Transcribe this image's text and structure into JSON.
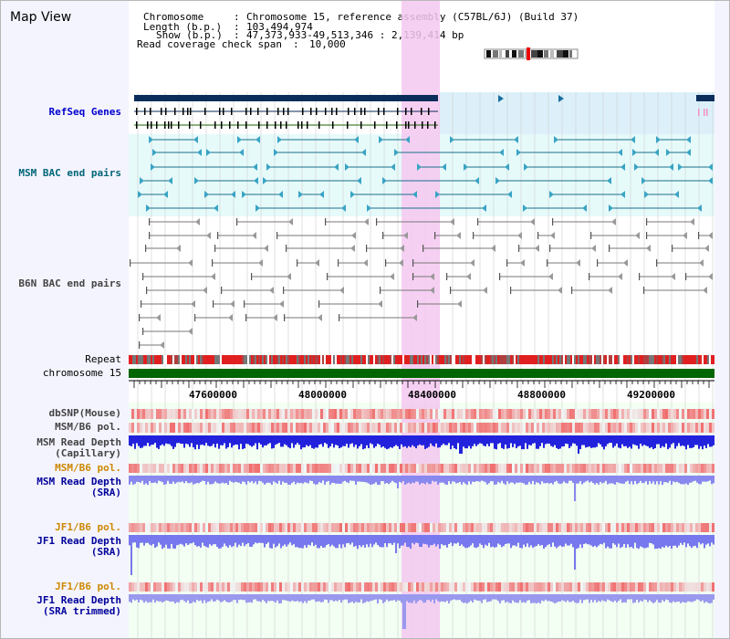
{
  "header": {
    "title": "Map View",
    "chromosome_key": "Chromosome",
    "chromosome_value": "Chromosome 15, reference assembly (C57BL/6J) (Build 37)",
    "length_key": "Length (b.p.)",
    "length_value": "103,494,974",
    "show_key": "Show (b.p.)",
    "show_value": "47,373,933-49,513,346 : 2,139,414 bp",
    "span_key": "Read coverage check span",
    "span_value": "10,000"
  },
  "tracks": {
    "refseq": "RefSeq Genes",
    "msm_bac": "MSM BAC end pairs",
    "b6n_bac": "B6N BAC end pairs",
    "repeat": "Repeat",
    "chromosome": "chromosome 15",
    "dbsnp": "dbSNP(Mouse)",
    "msm_b6_pol_1": "MSM/B6 pol.",
    "msm_depth_cap_1": "MSM Read Depth",
    "msm_depth_cap_2": "(Capillary)",
    "msm_b6_pol_2": "MSM/B6 pol.",
    "msm_depth_sra_1": "MSM Read Depth",
    "msm_depth_sra_2": "(SRA)",
    "jf1_b6_pol_1": "JF1/B6 pol.",
    "jf1_depth_sra_1": "JF1 Read Depth",
    "jf1_depth_sra_2": "(SRA)",
    "jf1_b6_pol_2": "JF1/B6 pol.",
    "jf1_depth_trim_1": "JF1 Read Depth",
    "jf1_depth_trim_2": "(SRA trimmed)"
  },
  "axis": {
    "ticks": [
      "47600000",
      "48000000",
      "48400000",
      "48800000",
      "49200000"
    ]
  },
  "colors": {
    "refseq_label": "#0000cc",
    "msm_bac_label": "#006677",
    "b6n_bac_label": "#444444",
    "pol_label_orange": "#cc8800",
    "depth_label_blue": "#000099",
    "highlight": "#f5c8f0"
  }
}
